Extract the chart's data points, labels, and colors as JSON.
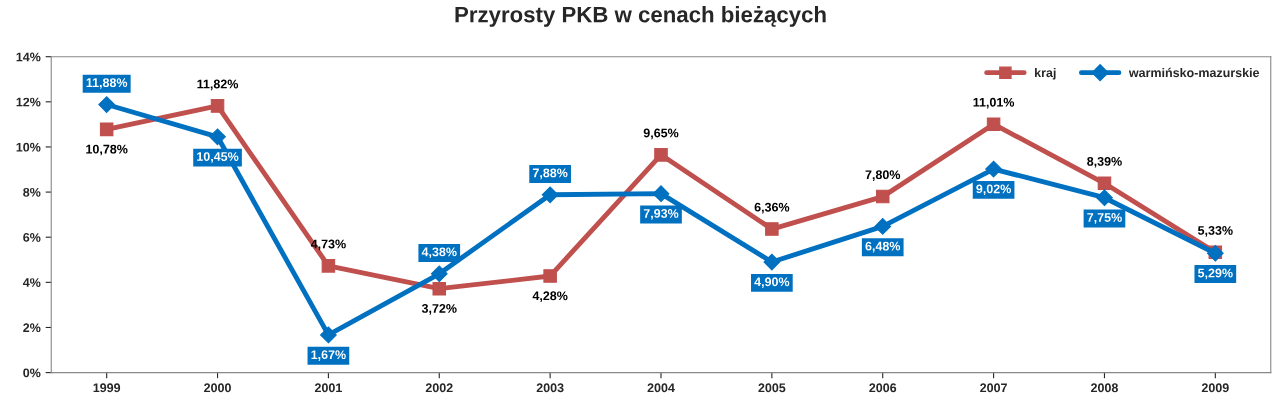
{
  "chart_data": {
    "type": "line",
    "title": "Przyrosty PKB w cenach bieżących",
    "categories": [
      "1999",
      "2000",
      "2001",
      "2002",
      "2003",
      "2004",
      "2005",
      "2006",
      "2007",
      "2008",
      "2009"
    ],
    "series": [
      {
        "name": "kraj",
        "color": "#c0504d",
        "marker": "square",
        "values": [
          10.78,
          11.82,
          4.73,
          3.72,
          4.28,
          9.65,
          6.36,
          7.8,
          11.01,
          8.39,
          5.33
        ],
        "value_labels": [
          "10,78%",
          "11,82%",
          "4,73%",
          "3,72%",
          "4,28%",
          "9,65%",
          "6,36%",
          "7,80%",
          "11,01%",
          "8,39%",
          "5,33%"
        ]
      },
      {
        "name": "warmińsko-mazurskie",
        "color": "#0070c0",
        "marker": "diamond",
        "values": [
          11.88,
          10.45,
          1.67,
          4.38,
          7.88,
          7.93,
          4.9,
          6.48,
          9.02,
          7.75,
          5.29
        ],
        "value_labels": [
          "11,88%",
          "10,45%",
          "1,67%",
          "4,38%",
          "7,88%",
          "7,93%",
          "4,90%",
          "6,48%",
          "9,02%",
          "7,75%",
          "5,29%"
        ]
      }
    ],
    "ylim": [
      0,
      14
    ],
    "yticks": [
      {
        "value": 0,
        "label": "0%"
      },
      {
        "value": 2,
        "label": "2%"
      },
      {
        "value": 4,
        "label": "4%"
      },
      {
        "value": 6,
        "label": "6%"
      },
      {
        "value": 8,
        "label": "8%"
      },
      {
        "value": 10,
        "label": "10%"
      },
      {
        "value": 12,
        "label": "12%"
      },
      {
        "value": 14,
        "label": "14%"
      }
    ],
    "grid": false,
    "legend": "top right",
    "line_style": "solid"
  }
}
